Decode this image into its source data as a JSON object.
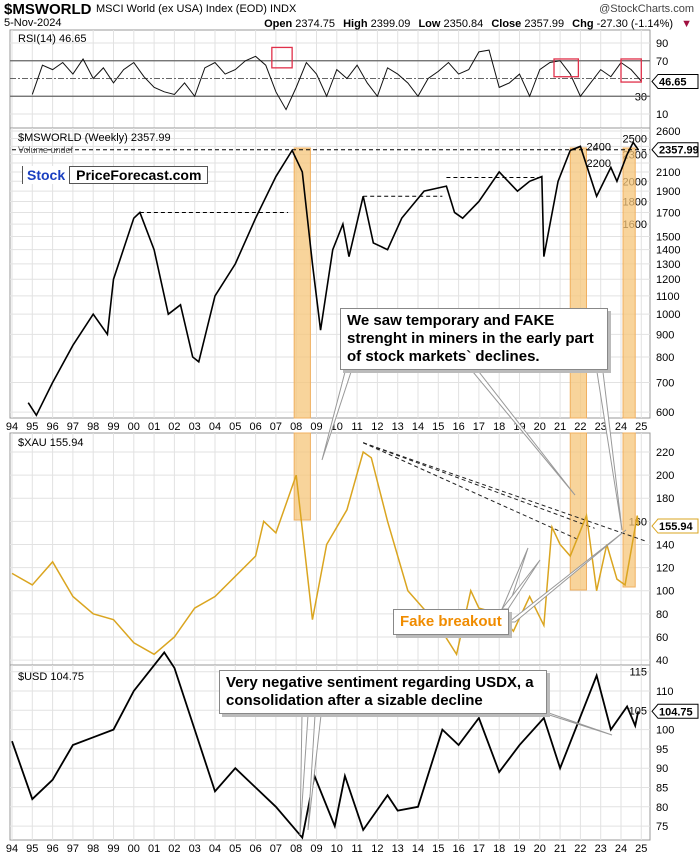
{
  "header": {
    "symbol": "$MSWORLD",
    "name": "MSCI World (ex USA) Index (EOD)",
    "exchange": "INDX",
    "date": "5-Nov-2024",
    "watermark": "@StockCharts.com",
    "ohlc": [
      {
        "k": "Open",
        "v": "2374.75"
      },
      {
        "k": "High",
        "v": "2399.09"
      },
      {
        "k": "Low",
        "v": "2350.84"
      },
      {
        "k": "Close",
        "v": "2357.99"
      },
      {
        "k": "Chg",
        "v": "-27.30 (-1.14%)"
      }
    ]
  },
  "logo": {
    "part1": "Stock",
    "part2": "PriceForecast.com"
  },
  "colors": {
    "gold": "#DAA520",
    "band": "#F5C57A",
    "highlight_box": "#E0304A",
    "price_down": "#D0002A"
  },
  "annotations": {
    "miners": "We saw temporary and FAKE strenght in miners in the early part of stock markets` declines.",
    "fake": "Fake breakout",
    "usd": "Very negative sentiment regarding USDX, a consolidation after a sizable decline"
  },
  "chart_data": [
    {
      "type": "line",
      "panel": "rsi",
      "label": "RSI(14) 46.65",
      "last": "46.65",
      "yticks": [
        90,
        70,
        30,
        10
      ],
      "ylim": [
        0,
        100
      ],
      "reference_lines": [
        70,
        50,
        30
      ],
      "x_start": 1995.0,
      "x_step": 0.5,
      "values": [
        32,
        65,
        60,
        68,
        55,
        72,
        50,
        62,
        45,
        60,
        68,
        52,
        40,
        35,
        32,
        45,
        30,
        62,
        68,
        55,
        60,
        70,
        75,
        65,
        35,
        15,
        40,
        68,
        55,
        30,
        60,
        50,
        65,
        45,
        30,
        62,
        55,
        45,
        30,
        50,
        58,
        68,
        55,
        60,
        80,
        82,
        40,
        45,
        55,
        30,
        60,
        68,
        70,
        55,
        30,
        45,
        60,
        52,
        68,
        60,
        47
      ]
    },
    {
      "type": "line",
      "panel": "price",
      "label": "$MSWORLD (Weekly) 2357.99",
      "sublabel": "Volume undef",
      "last": "2357.99",
      "scale": "log",
      "yticks": [
        2600,
        2500,
        2400,
        2300,
        2200,
        2100,
        2000,
        1900,
        1800,
        1700,
        1600,
        1500,
        1400,
        1300,
        1200,
        1100,
        1000,
        900,
        800,
        700,
        600
      ],
      "xticks": [
        "94",
        "95",
        "96",
        "97",
        "98",
        "99",
        "00",
        "01",
        "02",
        "03",
        "04",
        "05",
        "06",
        "07",
        "08",
        "09",
        "10",
        "11",
        "12",
        "13",
        "14",
        "15",
        "16",
        "17",
        "18",
        "19",
        "20",
        "21",
        "22",
        "23",
        "24",
        "25"
      ],
      "x": [
        1994.8,
        1995.2,
        1996,
        1997,
        1998,
        1998.7,
        1999,
        2000,
        2000.3,
        2001,
        2001.7,
        2002.3,
        2002.9,
        2003.2,
        2004,
        2005,
        2006,
        2007,
        2007.8,
        2008.3,
        2008.8,
        2009.2,
        2009.8,
        2010.3,
        2010.6,
        2011.3,
        2011.8,
        2012.5,
        2013.2,
        2014.3,
        2015.4,
        2015.8,
        2016.2,
        2017,
        2018,
        2018.9,
        2019.5,
        2020.1,
        2020.2,
        2020.9,
        2021.5,
        2022,
        2022.8,
        2023.5,
        2023.8,
        2024.3,
        2024.6,
        2024.85
      ],
      "values": [
        630,
        590,
        700,
        850,
        1000,
        900,
        1200,
        1650,
        1700,
        1400,
        1000,
        1050,
        800,
        780,
        1100,
        1300,
        1650,
        2050,
        2350,
        2100,
        1300,
        920,
        1400,
        1600,
        1350,
        1850,
        1450,
        1400,
        1650,
        1900,
        1950,
        1700,
        1650,
        1800,
        2100,
        1900,
        2000,
        2050,
        1350,
        2000,
        2350,
        2400,
        1850,
        2150,
        2000,
        2300,
        2450,
        2358
      ],
      "levels": [
        {
          "value": 1700,
          "from": 2000.3,
          "to": 2007.6
        },
        {
          "value": 1850,
          "from": 2011.3,
          "to": 2015.2
        },
        {
          "value": 2040,
          "from": 2015.4,
          "to": 2020.1
        },
        {
          "value": 2358,
          "from": 1994,
          "to": 2025.4
        }
      ],
      "bands": [
        [
          2007.9,
          2008.7
        ],
        [
          2021.5,
          2022.3
        ],
        [
          2024.1,
          2024.7
        ]
      ]
    },
    {
      "type": "line",
      "panel": "xau",
      "label": "$XAU 155.94",
      "last": "155.94",
      "yticks": [
        220,
        200,
        180,
        160,
        140,
        120,
        100,
        80,
        60,
        40
      ],
      "x": [
        1994,
        1995,
        1996,
        1997,
        1998,
        1999,
        2000,
        2001,
        2002,
        2003,
        2004,
        2006,
        2006.4,
        2007,
        2008,
        2008.8,
        2009.5,
        2010.5,
        2011.3,
        2011.7,
        2012.5,
        2013.5,
        2014,
        2015,
        2015.9,
        2016.6,
        2017,
        2018,
        2018.7,
        2019.5,
        2020.2,
        2020.6,
        2021,
        2021.5,
        2022.3,
        2022.8,
        2023.3,
        2023.8,
        2024.2,
        2024.8,
        2024.85
      ],
      "values": [
        115,
        105,
        125,
        95,
        80,
        75,
        55,
        45,
        60,
        85,
        95,
        130,
        160,
        150,
        200,
        75,
        140,
        170,
        220,
        215,
        160,
        100,
        90,
        70,
        45,
        100,
        85,
        80,
        65,
        95,
        70,
        155,
        140,
        130,
        165,
        100,
        140,
        110,
        105,
        165,
        156
      ],
      "trendlines": [
        {
          "from": [
            2011.3,
            228
          ],
          "to": [
            2025.2,
            143
          ]
        },
        {
          "from": [
            2011.3,
            228
          ],
          "to": [
            2022.7,
            154
          ]
        },
        {
          "from": [
            2011.3,
            228
          ],
          "to": [
            2021.8,
            145
          ]
        }
      ]
    },
    {
      "type": "line",
      "panel": "usd",
      "label": "$USD 104.75",
      "last": "104.75",
      "yticks": [
        115,
        110,
        105,
        100,
        95,
        90,
        85,
        80,
        75
      ],
      "xticks": [
        "94",
        "95",
        "96",
        "97",
        "98",
        "99",
        "00",
        "01",
        "02",
        "03",
        "04",
        "05",
        "06",
        "07",
        "08",
        "09",
        "10",
        "11",
        "12",
        "13",
        "14",
        "15",
        "16",
        "17",
        "18",
        "19",
        "20",
        "21",
        "22",
        "23",
        "24",
        "25"
      ],
      "x": [
        1994,
        1995,
        1996,
        1997,
        1998,
        1999,
        2000,
        2001.5,
        2002,
        2003,
        2004,
        2005,
        2006,
        2007,
        2008.3,
        2008.9,
        2009.9,
        2010.4,
        2011.3,
        2012.5,
        2013,
        2014,
        2015.2,
        2016,
        2017,
        2018,
        2019,
        2020.2,
        2021,
        2022.8,
        2023.5,
        2024.3,
        2024.7,
        2024.85
      ],
      "values": [
        97,
        82,
        87,
        96,
        98,
        100,
        110,
        120,
        116,
        100,
        84,
        90,
        85,
        80,
        72,
        88,
        75,
        88,
        74,
        83,
        79,
        80,
        100,
        96,
        103,
        89,
        96,
        103,
        90,
        114,
        100,
        106,
        101,
        104.75
      ]
    }
  ]
}
